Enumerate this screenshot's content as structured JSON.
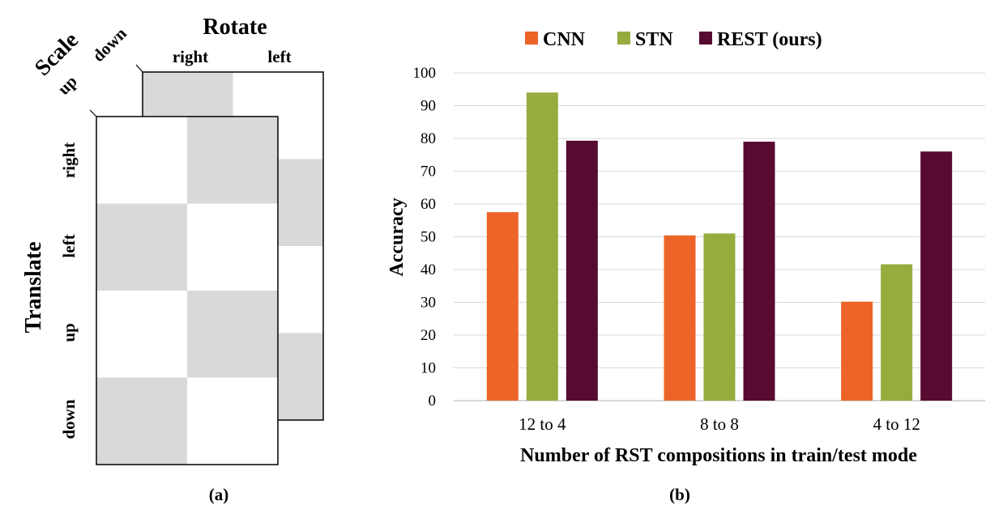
{
  "panel_a": {
    "caption": "(a)",
    "rotate_label": "Rotate",
    "rotate_options": [
      "right",
      "left"
    ],
    "scale_label": "Scale",
    "scale_options": [
      "down",
      "up"
    ],
    "translate_label": "Translate",
    "translate_options": [
      "right",
      "left",
      "up",
      "down"
    ],
    "grid": {
      "front_shaded": [
        [
          false,
          true
        ],
        [
          true,
          false
        ],
        [
          false,
          true
        ],
        [
          true,
          false
        ]
      ],
      "back_shaded": [
        [
          true,
          false
        ],
        [
          false,
          true
        ],
        [
          true,
          false
        ],
        [
          false,
          true
        ]
      ]
    },
    "colors": {
      "shade": "#d9d9d9",
      "line": "#000000"
    }
  },
  "panel_b": {
    "caption": "(b)"
  },
  "chart_data": {
    "type": "bar",
    "title": "",
    "xlabel": "Number of RST compositions in train/test mode",
    "ylabel": "Accuracy",
    "categories": [
      "12 to 4",
      "8 to 8",
      "4 to 12"
    ],
    "series": [
      {
        "name": "CNN",
        "values": [
          57.5,
          50.4,
          30.2
        ],
        "color": "#ec6428"
      },
      {
        "name": "STN",
        "values": [
          94.0,
          51.0,
          41.6
        ],
        "color": "#96ac3e"
      },
      {
        "name": "REST (ours)",
        "values": [
          79.3,
          79.0,
          76.0
        ],
        "color": "#570b30"
      }
    ],
    "ylim": [
      0,
      100
    ],
    "yticks": [
      0,
      10,
      20,
      30,
      40,
      50,
      60,
      70,
      80,
      90,
      100
    ],
    "grid": true,
    "legend_position": "top"
  }
}
